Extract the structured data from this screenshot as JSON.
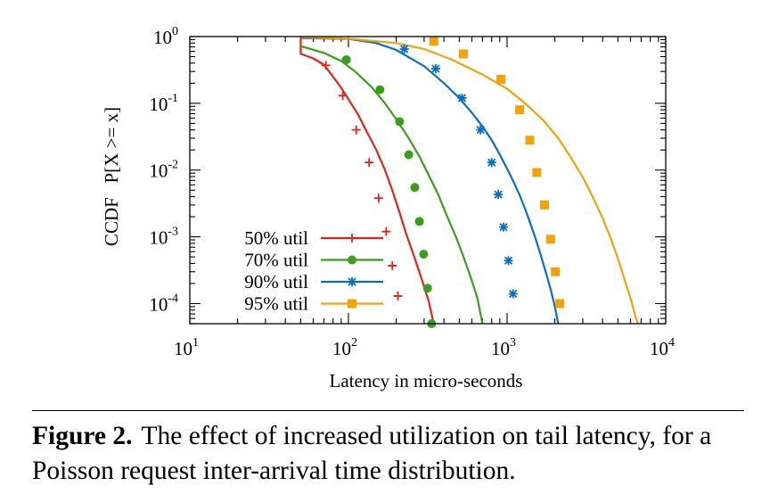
{
  "chart_data": {
    "type": "line",
    "xlabel": "Latency in micro-seconds",
    "ylabel": "CCDF   P[X >= x]",
    "xscale": "log",
    "yscale": "log",
    "xlim": [
      10,
      10000
    ],
    "ylim": [
      5e-05,
      1
    ],
    "grid": false,
    "legend_position": "bottom-left",
    "x_ticks": [
      {
        "value": 10,
        "base": "10",
        "exp": "1"
      },
      {
        "value": 100,
        "base": "10",
        "exp": "2"
      },
      {
        "value": 1000,
        "base": "10",
        "exp": "3"
      },
      {
        "value": 10000,
        "base": "10",
        "exp": "4"
      }
    ],
    "y_ticks": [
      {
        "value": 1,
        "base": "10",
        "exp": "0"
      },
      {
        "value": 0.1,
        "base": "10",
        "exp": "-1"
      },
      {
        "value": 0.01,
        "base": "10",
        "exp": "-2"
      },
      {
        "value": 0.001,
        "base": "10",
        "exp": "-3"
      },
      {
        "value": 0.0001,
        "base": "10",
        "exp": "-4"
      }
    ],
    "series": [
      {
        "name": "50% util",
        "color": "#e0261c",
        "marker": "plus",
        "line": [
          [
            50,
            1.0
          ],
          [
            50,
            0.55
          ],
          [
            60,
            0.47
          ],
          [
            70,
            0.38
          ],
          [
            80,
            0.25
          ],
          [
            90,
            0.17
          ],
          [
            100,
            0.115
          ],
          [
            115,
            0.068
          ],
          [
            130,
            0.038
          ],
          [
            150,
            0.02
          ],
          [
            170,
            0.01
          ],
          [
            190,
            0.0048
          ],
          [
            210,
            0.0023
          ],
          [
            230,
            0.00115
          ],
          [
            260,
            0.0005
          ],
          [
            290,
            0.00023
          ],
          [
            320,
            0.00011
          ],
          [
            345,
            5e-05
          ]
        ],
        "marks": [
          [
            72,
            0.37
          ],
          [
            92,
            0.13
          ],
          [
            112,
            0.04
          ],
          [
            135,
            0.013
          ],
          [
            155,
            0.0038
          ],
          [
            173,
            0.0012
          ],
          [
            189,
            0.00037
          ],
          [
            205,
            0.00013
          ]
        ]
      },
      {
        "name": "70% util",
        "color": "#3a9e1d",
        "marker": "circle",
        "line": [
          [
            50,
            0.72
          ],
          [
            70,
            0.57
          ],
          [
            90,
            0.43
          ],
          [
            110,
            0.3
          ],
          [
            140,
            0.175
          ],
          [
            170,
            0.1
          ],
          [
            200,
            0.058
          ],
          [
            240,
            0.03
          ],
          [
            280,
            0.016
          ],
          [
            320,
            0.0085
          ],
          [
            370,
            0.0042
          ],
          [
            420,
            0.002
          ],
          [
            480,
            0.00095
          ],
          [
            540,
            0.00045
          ],
          [
            600,
            0.00022
          ],
          [
            650,
            0.00012
          ],
          [
            700,
            5e-05
          ]
        ],
        "marks": [
          [
            97,
            0.45
          ],
          [
            158,
            0.16
          ],
          [
            210,
            0.053
          ],
          [
            240,
            0.017
          ],
          [
            262,
            0.0055
          ],
          [
            280,
            0.0017
          ],
          [
            298,
            0.00055
          ],
          [
            315,
            0.00017
          ],
          [
            334,
            5e-05
          ]
        ]
      },
      {
        "name": "90% util",
        "color": "#0a6fc2",
        "marker": "asterisk",
        "line": [
          [
            50,
            0.95
          ],
          [
            100,
            0.92
          ],
          [
            150,
            0.8
          ],
          [
            200,
            0.63
          ],
          [
            300,
            0.36
          ],
          [
            400,
            0.2
          ],
          [
            500,
            0.12
          ],
          [
            600,
            0.072
          ],
          [
            700,
            0.045
          ],
          [
            800,
            0.028
          ],
          [
            900,
            0.017
          ],
          [
            1000,
            0.0105
          ],
          [
            1100,
            0.0066
          ],
          [
            1200,
            0.0042
          ],
          [
            1300,
            0.0026
          ],
          [
            1400,
            0.0016
          ],
          [
            1500,
            0.001
          ],
          [
            1600,
            0.00062
          ],
          [
            1700,
            0.00038
          ],
          [
            1800,
            0.00024
          ],
          [
            1900,
            0.00015
          ],
          [
            2000,
            9e-05
          ],
          [
            2100,
            5e-05
          ]
        ],
        "marks": [
          [
            225,
            0.65
          ],
          [
            355,
            0.33
          ],
          [
            520,
            0.12
          ],
          [
            680,
            0.04
          ],
          [
            800,
            0.013
          ],
          [
            880,
            0.0043
          ],
          [
            950,
            0.0014
          ],
          [
            1020,
            0.00044
          ],
          [
            1090,
            0.00014
          ]
        ]
      },
      {
        "name": "95% util",
        "color": "#f2a20a",
        "marker": "square",
        "line": [
          [
            50,
            0.98
          ],
          [
            100,
            0.93
          ],
          [
            200,
            0.8
          ],
          [
            300,
            0.65
          ],
          [
            450,
            0.45
          ],
          [
            700,
            0.27
          ],
          [
            1000,
            0.165
          ],
          [
            1300,
            0.1
          ],
          [
            1700,
            0.055
          ],
          [
            2100,
            0.03
          ],
          [
            2500,
            0.016
          ],
          [
            3000,
            0.0078
          ],
          [
            3500,
            0.0038
          ],
          [
            4000,
            0.0019
          ],
          [
            4500,
            0.00095
          ],
          [
            5000,
            0.00047
          ],
          [
            5500,
            0.00023
          ],
          [
            6000,
            0.00012
          ],
          [
            6500,
            6e-05
          ],
          [
            6700,
            5e-05
          ]
        ],
        "marks": [
          [
            345,
            0.85
          ],
          [
            530,
            0.55
          ],
          [
            915,
            0.23
          ],
          [
            1200,
            0.08
          ],
          [
            1390,
            0.028
          ],
          [
            1540,
            0.0092
          ],
          [
            1720,
            0.003
          ],
          [
            1880,
            0.00092
          ],
          [
            2015,
            0.0003
          ],
          [
            2150,
            0.0001
          ]
        ]
      }
    ]
  },
  "caption": {
    "label": "Figure 2.",
    "text": "The effect of increased utilization on tail latency, for a Poisson request inter-arrival time distribution."
  }
}
